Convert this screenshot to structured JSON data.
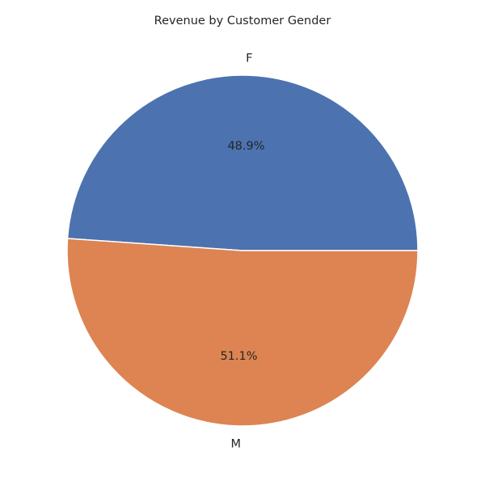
{
  "chart_data": {
    "type": "pie",
    "title": "Revenue by Customer Gender",
    "categories": [
      "F",
      "M"
    ],
    "values": [
      48.9,
      51.1
    ],
    "percent_labels": [
      "48.9%",
      "51.1%"
    ],
    "colors": [
      "#4c72b0",
      "#dd8452"
    ],
    "start_angle_deg": 0,
    "direction": "counterclockwise"
  }
}
